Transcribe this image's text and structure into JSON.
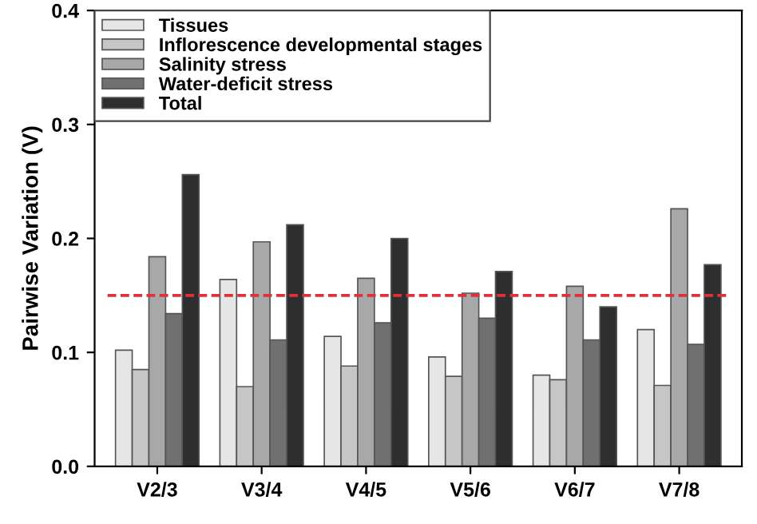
{
  "chart_data": {
    "type": "bar",
    "ylabel": "Pairwise Variation (V)",
    "categories": [
      "V2/3",
      "V3/4",
      "V4/5",
      "V5/6",
      "V6/7",
      "V7/8"
    ],
    "series": [
      {
        "name": "Tissues",
        "color": "#e6e6e6",
        "values": [
          0.102,
          0.164,
          0.114,
          0.096,
          0.08,
          0.12
        ]
      },
      {
        "name": "Inflorescence developmental stages",
        "color": "#c6c6c6",
        "values": [
          0.085,
          0.07,
          0.088,
          0.079,
          0.076,
          0.071
        ]
      },
      {
        "name": "Salinity stress",
        "color": "#a8a8a8",
        "values": [
          0.184,
          0.197,
          0.165,
          0.152,
          0.158,
          0.226
        ]
      },
      {
        "name": "Water-deficit stress",
        "color": "#707070",
        "values": [
          0.134,
          0.111,
          0.126,
          0.13,
          0.111,
          0.107
        ]
      },
      {
        "name": "Total",
        "color": "#2e2e2e",
        "values": [
          0.256,
          0.212,
          0.2,
          0.171,
          0.14,
          0.177
        ]
      }
    ],
    "ylim": [
      0,
      0.4
    ],
    "yticks": [
      {
        "value": 0,
        "label": "0.0"
      },
      0.1,
      0.2,
      0.3,
      0.4
    ],
    "ref_lines": [
      {
        "axis": "y",
        "value": 0.15,
        "color": "#e0303c",
        "line_style": "dashed"
      }
    ],
    "grid": false,
    "legend": "top left"
  }
}
